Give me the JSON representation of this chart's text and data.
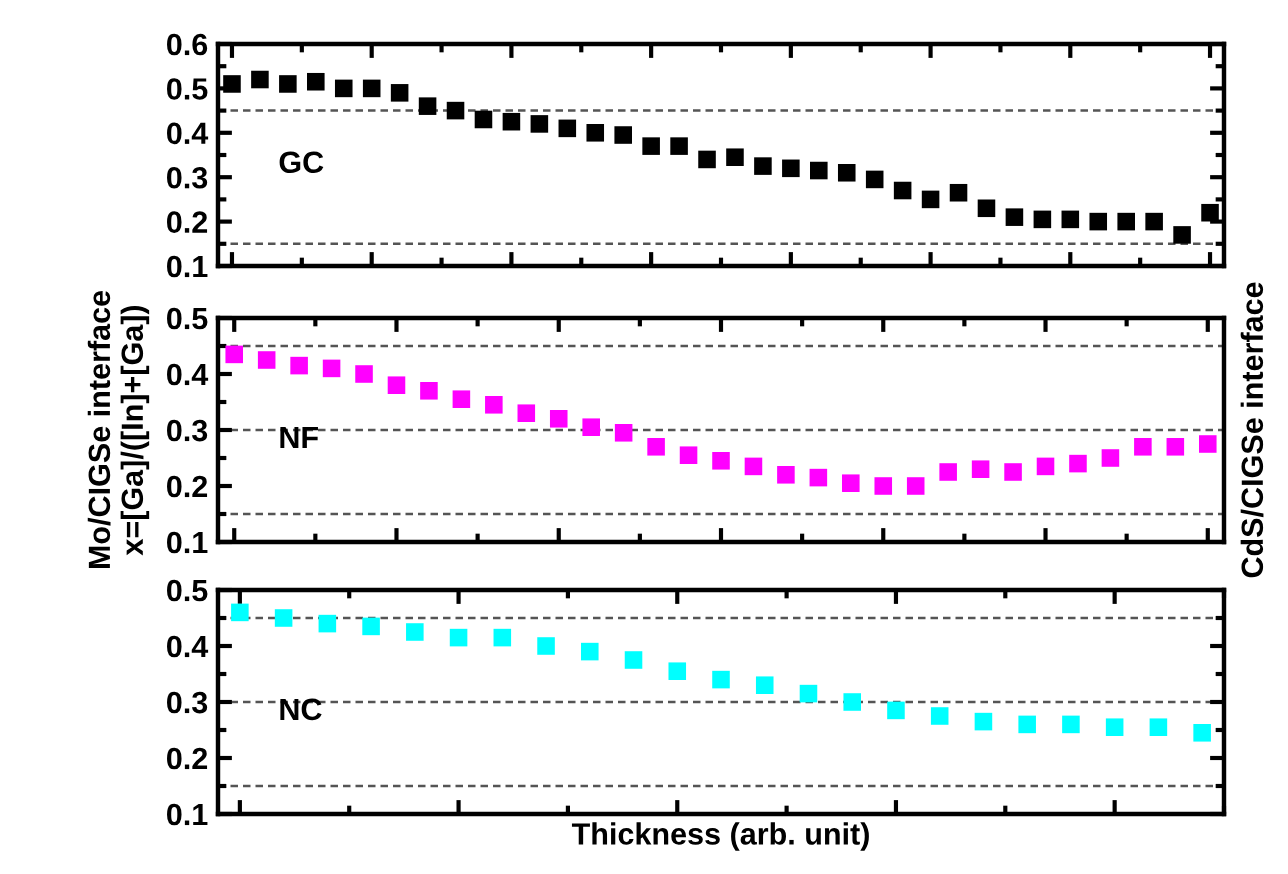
{
  "chart_data": [
    {
      "type": "scatter",
      "categories": [
        null,
        null,
        null,
        null,
        null,
        null,
        null,
        null,
        null,
        null,
        null,
        null,
        null,
        null,
        null,
        null,
        null,
        null,
        null,
        null,
        null,
        null,
        null,
        null,
        null,
        null,
        null,
        null,
        null,
        null,
        null,
        null,
        null,
        null,
        null,
        null
      ],
      "series": [
        {
          "color": "#000000",
          "values": [
            0.51,
            0.52,
            0.51,
            0.515,
            0.5,
            0.5,
            0.49,
            0.46,
            0.45,
            0.43,
            0.425,
            0.42,
            0.41,
            0.4,
            0.395,
            0.37,
            0.37,
            0.34,
            0.345,
            0.325,
            0.32,
            0.315,
            0.31,
            0.295,
            0.27,
            0.25,
            0.265,
            0.23,
            0.21,
            0.205,
            0.205,
            0.2,
            0.2,
            0.2,
            0.17,
            0.22
          ]
        }
      ],
      "marker": "square",
      "ylim": [
        0.1,
        0.6
      ],
      "yticks": [
        0.1,
        0.2,
        0.3,
        0.4,
        0.5,
        0.6
      ],
      "grid": false,
      "tick_labels": "y",
      "ref_lines": [
        {
          "axis": "y",
          "value": 0.45,
          "line_style": "dashed",
          "color": "#555555"
        },
        {
          "axis": "y",
          "value": 0.15,
          "line_style": "dashed",
          "color": "#555555"
        }
      ],
      "annotations": [
        "GC"
      ]
    },
    {
      "type": "scatter",
      "categories": [
        null,
        null,
        null,
        null,
        null,
        null,
        null,
        null,
        null,
        null,
        null,
        null,
        null,
        null,
        null,
        null,
        null,
        null,
        null,
        null,
        null,
        null,
        null,
        null,
        null,
        null,
        null,
        null,
        null,
        null,
        null
      ],
      "series": [
        {
          "color": "#ff00ff",
          "values": [
            0.435,
            0.425,
            0.415,
            0.41,
            0.4,
            0.38,
            0.37,
            0.355,
            0.345,
            0.33,
            0.32,
            0.305,
            0.295,
            0.27,
            0.255,
            0.245,
            0.235,
            0.22,
            0.215,
            0.205,
            0.2,
            0.2,
            0.225,
            0.23,
            0.225,
            0.235,
            0.24,
            0.25,
            0.27,
            0.27,
            0.275
          ]
        }
      ],
      "marker": "square",
      "ylim": [
        0.1,
        0.5
      ],
      "yticks": [
        0.1,
        0.2,
        0.3,
        0.4,
        0.5
      ],
      "grid": false,
      "tick_labels": "y",
      "ylabel": "Mo/CIGSe interface\nx=[Ga]/([In]+[Ga])",
      "y2label": "CdS/CIGSe interface",
      "ref_lines": [
        {
          "axis": "y",
          "value": 0.45,
          "line_style": "dashed",
          "color": "#555555"
        },
        {
          "axis": "y",
          "value": 0.3,
          "line_style": "dashed",
          "color": "#555555"
        },
        {
          "axis": "y",
          "value": 0.15,
          "line_style": "dashed",
          "color": "#555555"
        }
      ],
      "annotations": [
        "NF"
      ]
    },
    {
      "type": "scatter",
      "categories": [
        null,
        null,
        null,
        null,
        null,
        null,
        null,
        null,
        null,
        null,
        null,
        null,
        null,
        null,
        null,
        null,
        null,
        null,
        null,
        null,
        null,
        null,
        null
      ],
      "series": [
        {
          "color": "#00ffff",
          "values": [
            0.46,
            0.45,
            0.44,
            0.435,
            0.425,
            0.415,
            0.415,
            0.4,
            0.39,
            0.375,
            0.355,
            0.34,
            0.33,
            0.315,
            0.3,
            0.285,
            0.275,
            0.265,
            0.26,
            0.26,
            0.255,
            0.255,
            0.245
          ]
        }
      ],
      "marker": "square",
      "ylim": [
        0.1,
        0.5
      ],
      "yticks": [
        0.1,
        0.2,
        0.3,
        0.4,
        0.5
      ],
      "grid": false,
      "tick_labels": "y",
      "xlabel": "Thickness (arb. unit)",
      "ref_lines": [
        {
          "axis": "y",
          "value": 0.45,
          "line_style": "dashed",
          "color": "#555555"
        },
        {
          "axis": "y",
          "value": 0.3,
          "line_style": "dashed",
          "color": "#555555"
        },
        {
          "axis": "y",
          "value": 0.15,
          "line_style": "dashed",
          "color": "#555555"
        }
      ],
      "annotations": [
        "NC"
      ]
    }
  ]
}
